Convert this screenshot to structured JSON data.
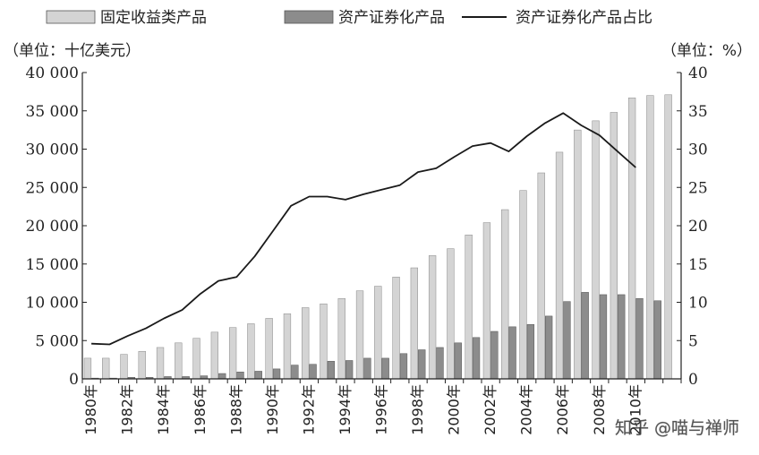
{
  "chart_data": {
    "type": "bar",
    "legend": {
      "placement": "top",
      "items": [
        {
          "key": "fixed",
          "label": "固定收益类产品",
          "swatch": "bar",
          "color": "#d4d4d4"
        },
        {
          "key": "sec",
          "label": "资产证券化产品",
          "swatch": "bar",
          "color": "#8c8c8c"
        },
        {
          "key": "ratio",
          "label": "资产证券化产品占比",
          "swatch": "line",
          "color": "#1a1a1a"
        }
      ]
    },
    "left_unit": "（单位：十亿美元）",
    "right_unit": "（单位：%）",
    "left_axis": {
      "ylim": [
        0,
        40000
      ],
      "ticks": [
        0,
        5000,
        10000,
        15000,
        20000,
        25000,
        30000,
        35000,
        40000
      ],
      "tick_labels": [
        "0",
        "5 000",
        "10 000",
        "15 000",
        "20 000",
        "25 000",
        "30 000",
        "35 000",
        "40 000"
      ]
    },
    "right_axis": {
      "ylim": [
        0,
        40
      ],
      "ticks": [
        0,
        5,
        10,
        15,
        20,
        25,
        30,
        35,
        40
      ],
      "tick_labels": [
        "0",
        "5",
        "10",
        "15",
        "20",
        "25",
        "30",
        "35",
        "40"
      ]
    },
    "categories": [
      "1980",
      "1981",
      "1982",
      "1983",
      "1984",
      "1985",
      "1986",
      "1987",
      "1988",
      "1989",
      "1990",
      "1991",
      "1992",
      "1993",
      "1994",
      "1995",
      "1996",
      "1997",
      "1998",
      "1999",
      "2000",
      "2001",
      "2002",
      "2003",
      "2004",
      "2005",
      "2006",
      "2007",
      "2008",
      "2009",
      "2010",
      "2011",
      "2012"
    ],
    "x_tick_labels": [
      "1980年",
      "1982年",
      "1984年",
      "1986年",
      "1988年",
      "1990年",
      "1992年",
      "1994年",
      "1996年",
      "1998年",
      "2000年",
      "2002年",
      "2004年",
      "2006年",
      "2008年",
      "2010年"
    ],
    "series": [
      {
        "name": "固定收益类产品",
        "axis": "left",
        "values": [
          2700,
          2700,
          3200,
          3600,
          4100,
          4700,
          5300,
          6100,
          6700,
          7200,
          7900,
          8500,
          9300,
          9800,
          10500,
          11500,
          12100,
          13300,
          14500,
          16100,
          17000,
          18800,
          20400,
          22100,
          24600,
          26900,
          29600,
          32500,
          33700,
          34800,
          36700,
          37000,
          37100
        ]
      },
      {
        "name": "资产证券化产品",
        "axis": "left",
        "values": [
          100,
          100,
          200,
          200,
          300,
          300,
          400,
          700,
          900,
          1000,
          1300,
          1800,
          1900,
          2300,
          2400,
          2700,
          2700,
          3300,
          3800,
          4100,
          4700,
          5400,
          6200,
          6800,
          7100,
          8200,
          10100,
          11300,
          11000,
          11000,
          10500,
          10200,
          0
        ]
      },
      {
        "name": "资产证券化产品占比",
        "axis": "right",
        "values": [
          4.6,
          4.5,
          5.6,
          6.6,
          7.9,
          9.0,
          11.1,
          12.8,
          13.3,
          16.0,
          19.3,
          22.6,
          23.8,
          23.8,
          23.4,
          24.1,
          24.7,
          25.3,
          27.0,
          27.5,
          29.0,
          30.4,
          30.8,
          29.7,
          31.7,
          33.4,
          34.7,
          33.1,
          31.8,
          29.7,
          27.6,
          null,
          null
        ]
      }
    ]
  },
  "watermark": "知乎 @喵与禅师"
}
